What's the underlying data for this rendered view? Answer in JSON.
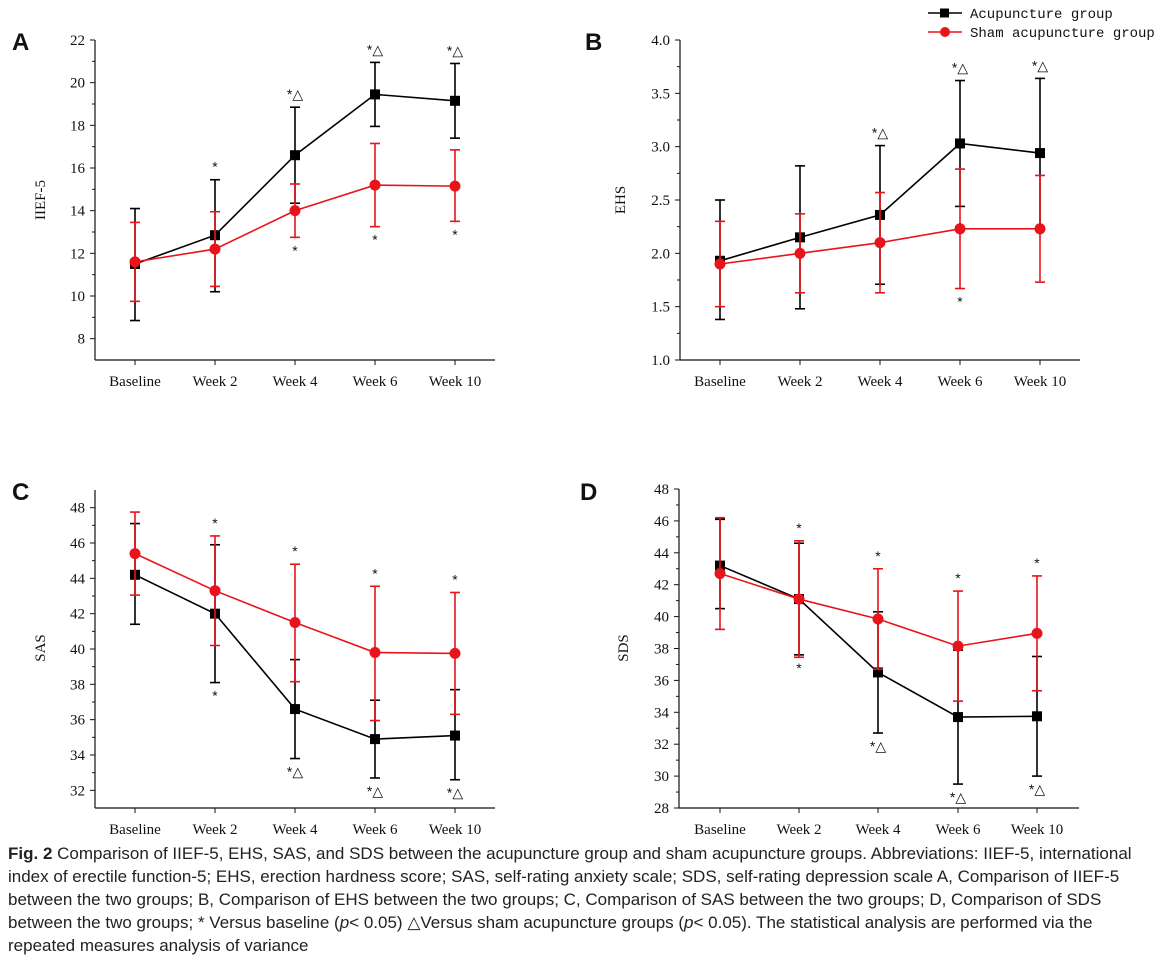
{
  "legend": {
    "series": [
      {
        "label": "Acupuncture group",
        "color": "#000000",
        "marker": "square"
      },
      {
        "label": "Sham acupuncture group",
        "color": "#e8141c",
        "marker": "circle"
      }
    ],
    "placement": "top-right"
  },
  "colors": {
    "acupuncture": "#000000",
    "sham": "#e8141c"
  },
  "chart_data": [
    {
      "panel": "A",
      "type": "line",
      "xlabel": "",
      "ylabel": "IIEF-5",
      "categories": [
        "Baseline",
        "Week 2",
        "Week 4",
        "Week 6",
        "Week 10"
      ],
      "ylim": [
        7,
        22
      ],
      "yticks": [
        8,
        10,
        12,
        14,
        16,
        18,
        20,
        22
      ],
      "series": [
        {
          "name": "Acupuncture group",
          "values": [
            11.5,
            12.85,
            16.6,
            19.45,
            19.15
          ],
          "err_upper": [
            14.1,
            15.45,
            18.85,
            20.95,
            20.9
          ],
          "err_lower": [
            8.85,
            10.2,
            14.35,
            17.95,
            17.4
          ],
          "annotations": [
            {
              "i": 1,
              "text": "*",
              "pos": "above"
            },
            {
              "i": 2,
              "text": "*△",
              "pos": "above"
            },
            {
              "i": 3,
              "text": "*△",
              "pos": "above"
            },
            {
              "i": 4,
              "text": "*△",
              "pos": "above"
            }
          ]
        },
        {
          "name": "Sham acupuncture group",
          "values": [
            11.6,
            12.2,
            14.0,
            15.2,
            15.15
          ],
          "err_upper": [
            13.45,
            13.95,
            15.25,
            17.15,
            16.85
          ],
          "err_lower": [
            9.75,
            10.45,
            12.75,
            13.25,
            13.5
          ],
          "annotations": [
            {
              "i": 2,
              "text": "*",
              "pos": "below"
            },
            {
              "i": 3,
              "text": "*",
              "pos": "below"
            },
            {
              "i": 4,
              "text": "*",
              "pos": "below"
            }
          ]
        }
      ]
    },
    {
      "panel": "B",
      "type": "line",
      "xlabel": "",
      "ylabel": "EHS",
      "categories": [
        "Baseline",
        "Week 2",
        "Week 4",
        "Week 6",
        "Week 10"
      ],
      "ylim": [
        1.0,
        4.0
      ],
      "yticks": [
        1.0,
        1.5,
        2.0,
        2.5,
        3.0,
        3.5,
        4.0
      ],
      "series": [
        {
          "name": "Acupuncture group",
          "values": [
            1.93,
            2.15,
            2.36,
            3.03,
            2.94
          ],
          "err_upper": [
            2.5,
            2.82,
            3.01,
            3.62,
            3.64
          ],
          "err_lower": [
            1.38,
            1.48,
            1.71,
            2.44,
            2.23
          ],
          "annotations": [
            {
              "i": 2,
              "text": "*△",
              "pos": "above"
            },
            {
              "i": 3,
              "text": "*△",
              "pos": "above"
            },
            {
              "i": 4,
              "text": "*△",
              "pos": "above"
            }
          ]
        },
        {
          "name": "Sham acupuncture group",
          "values": [
            1.9,
            2.0,
            2.1,
            2.23,
            2.23
          ],
          "err_upper": [
            2.3,
            2.37,
            2.57,
            2.79,
            2.73
          ],
          "err_lower": [
            1.5,
            1.63,
            1.63,
            1.67,
            1.73
          ],
          "annotations": [
            {
              "i": 3,
              "text": "*",
              "pos": "below"
            }
          ]
        }
      ]
    },
    {
      "panel": "C",
      "type": "line",
      "xlabel": "",
      "ylabel": "SAS",
      "categories": [
        "Baseline",
        "Week 2",
        "Week 4",
        "Week 6",
        "Week 10"
      ],
      "ylim": [
        31,
        49
      ],
      "yticks": [
        32,
        34,
        36,
        38,
        40,
        42,
        44,
        46,
        48
      ],
      "series": [
        {
          "name": "Acupuncture group",
          "values": [
            44.2,
            42.0,
            36.6,
            34.9,
            35.1
          ],
          "err_upper": [
            47.1,
            45.9,
            39.4,
            37.1,
            37.7
          ],
          "err_lower": [
            41.4,
            38.1,
            33.8,
            32.7,
            32.6
          ],
          "annotations": [
            {
              "i": 1,
              "text": "*",
              "pos": "below"
            },
            {
              "i": 2,
              "text": "*△",
              "pos": "below"
            },
            {
              "i": 3,
              "text": "*△",
              "pos": "below"
            },
            {
              "i": 4,
              "text": "*△",
              "pos": "below"
            }
          ]
        },
        {
          "name": "Sham acupuncture group",
          "values": [
            45.4,
            43.3,
            41.5,
            39.8,
            39.75
          ],
          "err_upper": [
            47.75,
            46.4,
            44.8,
            43.55,
            43.2
          ],
          "err_lower": [
            43.05,
            40.2,
            38.15,
            35.95,
            36.3
          ],
          "annotations": [
            {
              "i": 1,
              "text": "*",
              "pos": "above"
            },
            {
              "i": 2,
              "text": "*",
              "pos": "above"
            },
            {
              "i": 3,
              "text": "*",
              "pos": "above"
            },
            {
              "i": 4,
              "text": "*",
              "pos": "above"
            }
          ]
        }
      ]
    },
    {
      "panel": "D",
      "type": "line",
      "xlabel": "",
      "ylabel": "SDS",
      "categories": [
        "Baseline",
        "Week 2",
        "Week 4",
        "Week 6",
        "Week 10"
      ],
      "ylim": [
        28,
        48
      ],
      "yticks": [
        28,
        30,
        32,
        34,
        36,
        38,
        40,
        42,
        44,
        46,
        48
      ],
      "series": [
        {
          "name": "Acupuncture group",
          "values": [
            43.2,
            41.1,
            36.5,
            33.7,
            33.75
          ],
          "err_upper": [
            46.1,
            44.6,
            40.3,
            37.9,
            37.5
          ],
          "err_lower": [
            40.5,
            37.6,
            32.7,
            29.5,
            30.0
          ],
          "annotations": [
            {
              "i": 1,
              "text": "*",
              "pos": "below"
            },
            {
              "i": 2,
              "text": "*△",
              "pos": "below"
            },
            {
              "i": 3,
              "text": "*△",
              "pos": "below"
            },
            {
              "i": 4,
              "text": "*△",
              "pos": "below"
            }
          ]
        },
        {
          "name": "Sham acupuncture group",
          "values": [
            42.7,
            41.1,
            39.85,
            38.15,
            38.95
          ],
          "err_upper": [
            46.2,
            44.75,
            43.0,
            41.6,
            42.55
          ],
          "err_lower": [
            39.2,
            37.45,
            36.7,
            34.7,
            35.35
          ],
          "annotations": [
            {
              "i": 1,
              "text": "*",
              "pos": "above"
            },
            {
              "i": 2,
              "text": "*",
              "pos": "above"
            },
            {
              "i": 3,
              "text": "*",
              "pos": "above"
            },
            {
              "i": 4,
              "text": "*",
              "pos": "above"
            }
          ]
        }
      ]
    }
  ],
  "caption": {
    "label": "Fig. 2",
    "text_before_p1": "Comparison of IIEF-5, EHS, SAS, and SDS between the acupuncture group and sham acupuncture groups. Abbreviations: IIEF-5, international index of erectile function-5; EHS, erection hardness score; SAS, self-rating anxiety scale; SDS, self-rating depression scale A, Comparison of IIEF-5 between the two groups; B, Comparison of EHS between the two groups; C, Comparison of SAS between the two groups; D, Comparison of SDS between the two groups; * Versus baseline (",
    "p_symbol": "p",
    "p_value_1": "< 0.05)",
    "triangle": "△",
    "text_middle": "Versus sham acupuncture groups (",
    "p_value_2": "< 0.05). The statistical analysis are performed via the repeated measures analysis of variance"
  }
}
